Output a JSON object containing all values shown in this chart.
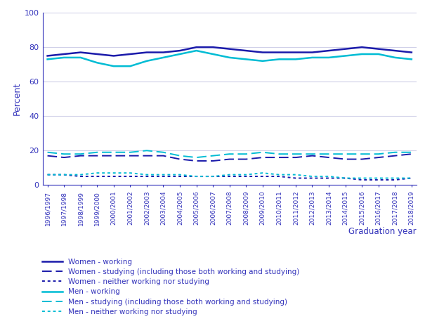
{
  "years": [
    "1996/1997",
    "1997/1998",
    "1998/1999",
    "1999/2000",
    "2000/2001",
    "2001/2002",
    "2002/2003",
    "2003/2004",
    "2004/2005",
    "2005/2006",
    "2006/2007",
    "2007/2008",
    "2008/2009",
    "2009/2010",
    "2010/2011",
    "2011/2012",
    "2012/2013",
    "2013/2014",
    "2014/2015",
    "2015/2016",
    "2016/2017",
    "2017/2018",
    "2018/2019"
  ],
  "women_working": [
    75,
    76,
    77,
    76,
    75,
    76,
    77,
    77,
    78,
    80,
    80,
    79,
    78,
    77,
    77,
    77,
    77,
    78,
    79,
    80,
    79,
    78,
    77
  ],
  "women_studying": [
    17,
    16,
    17,
    17,
    17,
    17,
    17,
    17,
    15,
    14,
    14,
    15,
    15,
    16,
    16,
    16,
    17,
    16,
    15,
    15,
    16,
    17,
    18
  ],
  "women_neither": [
    6,
    6,
    5,
    5,
    5,
    5,
    5,
    5,
    5,
    5,
    5,
    5,
    5,
    5,
    5,
    4,
    4,
    4,
    4,
    3,
    3,
    3,
    4
  ],
  "men_working": [
    73,
    74,
    74,
    71,
    69,
    69,
    72,
    74,
    76,
    78,
    76,
    74,
    73,
    72,
    73,
    73,
    74,
    74,
    75,
    76,
    76,
    74,
    73
  ],
  "men_studying": [
    19,
    18,
    18,
    19,
    19,
    19,
    20,
    19,
    17,
    16,
    17,
    18,
    18,
    19,
    18,
    18,
    18,
    18,
    18,
    18,
    18,
    19,
    19
  ],
  "men_neither": [
    6,
    6,
    6,
    7,
    7,
    7,
    6,
    6,
    6,
    5,
    5,
    6,
    6,
    7,
    6,
    6,
    5,
    5,
    4,
    4,
    4,
    4,
    4
  ],
  "women_color": "#1a1aaa",
  "men_color": "#00bcd4",
  "ylim": [
    0,
    100
  ],
  "yticks": [
    0,
    20,
    40,
    60,
    80,
    100
  ],
  "ylabel": "Percent",
  "xlabel": "Graduation year",
  "background_color": "#FFFFFF",
  "grid_color": "#d0d0e8",
  "axis_color": "#3333bb",
  "tick_color": "#3333bb",
  "legend_labels": [
    "Women - working",
    "Women - studying (including those both working and studying)",
    "Women - neither working nor studying",
    "Men - working",
    "Men - studying (including those both working and studying)",
    "Men - neither working nor studying"
  ]
}
